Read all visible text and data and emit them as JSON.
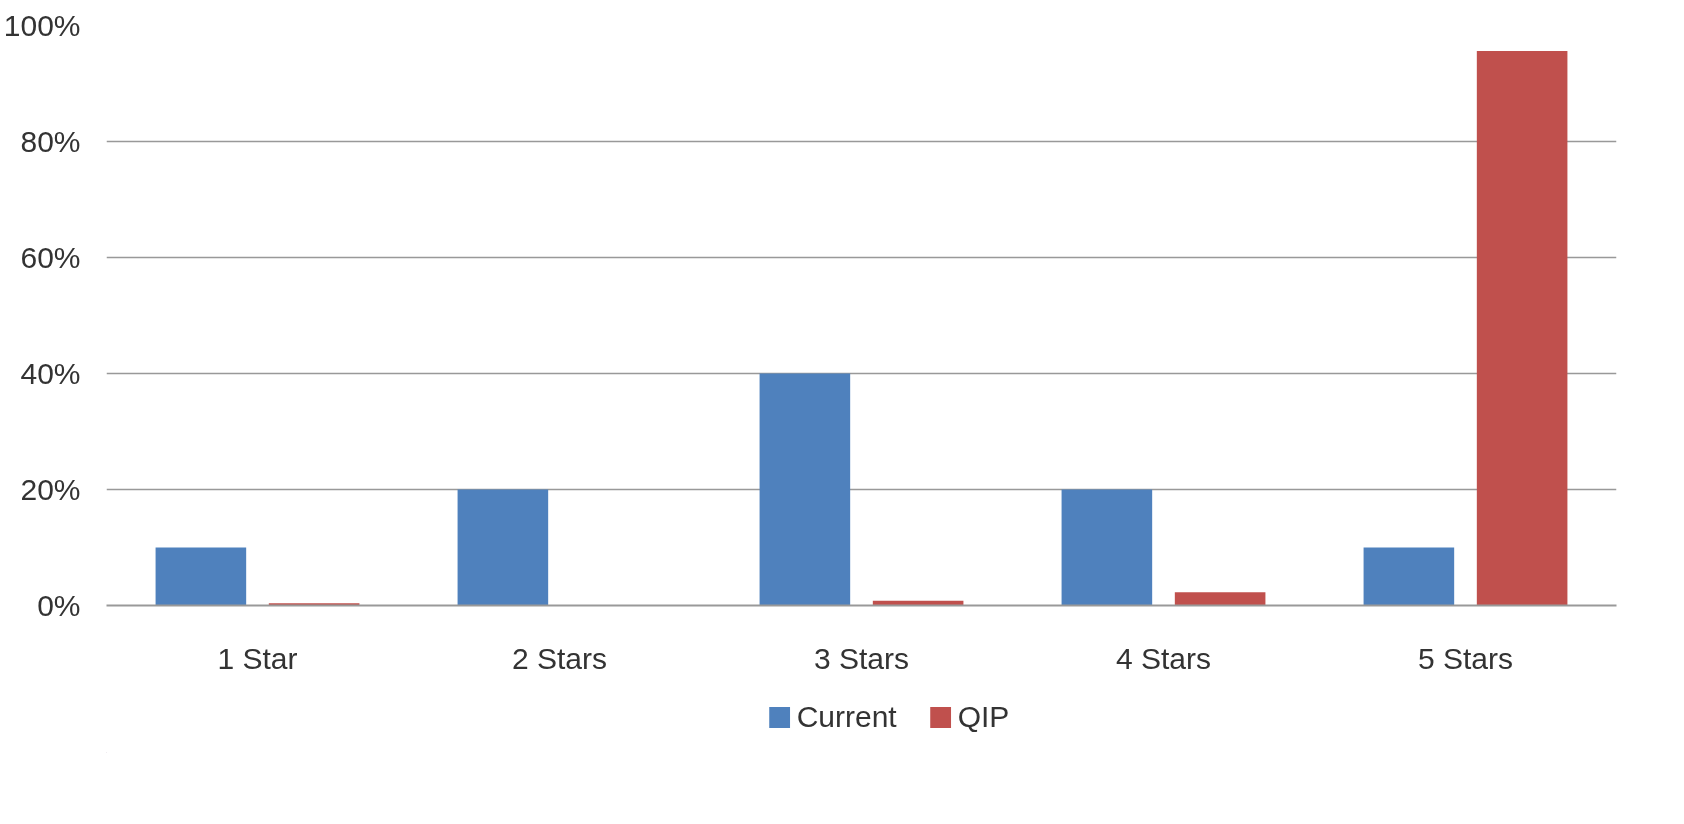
{
  "chart_data": {
    "type": "bar",
    "categories": [
      "1 Star",
      "2 Stars",
      "3 Stars",
      "4 Stars",
      "5 Stars"
    ],
    "series": [
      {
        "name": "Current",
        "color": "#4f81bd",
        "values": [
          10,
          20,
          40,
          20,
          10
        ]
      },
      {
        "name": "QIP",
        "color": "#c0504d",
        "values": [
          0.4,
          0,
          0.8,
          2.3,
          95.6
        ]
      }
    ],
    "ylim": [
      0,
      100
    ],
    "yticks": [
      {
        "value": 0,
        "label": "0%"
      },
      {
        "value": 20,
        "label": "20%"
      },
      {
        "value": 40,
        "label": "40%"
      },
      {
        "value": 60,
        "label": "60%"
      },
      {
        "value": 80,
        "label": "80%"
      },
      {
        "value": 100,
        "label": "100%"
      }
    ],
    "grid": "y",
    "legend": "bottom"
  }
}
